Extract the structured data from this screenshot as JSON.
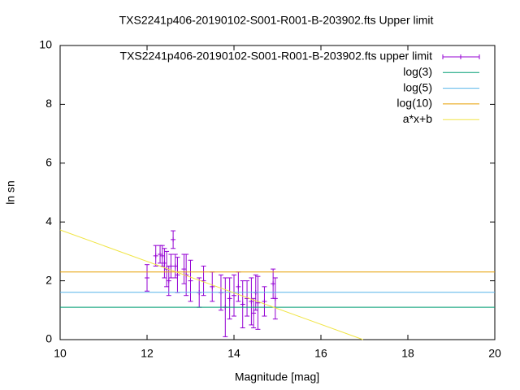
{
  "chart_data": {
    "type": "errorbar",
    "title": "TXS2241p406-20190102-S001-R001-B-203902.fts Upper limit",
    "xlabel": "Magnitude [mag]",
    "ylabel": "ln sn",
    "xlim": [
      10,
      20
    ],
    "xticks": [
      10,
      12,
      14,
      16,
      18,
      20
    ],
    "ylim": [
      0,
      10
    ],
    "yticks": [
      0,
      2,
      4,
      6,
      8,
      10
    ],
    "legend": "top-right",
    "series": [
      {
        "name": "TXS2241p406-20190102-S001-R001-B-203902.fts upper limit",
        "color": "#9400d3",
        "kind": "errorbar",
        "x": [
          12.0,
          12.2,
          12.3,
          12.35,
          12.4,
          12.45,
          12.5,
          12.55,
          12.6,
          12.65,
          12.7,
          12.85,
          12.9,
          13.0,
          13.2,
          13.3,
          13.5,
          13.7,
          13.8,
          13.9,
          14.0,
          14.1,
          14.2,
          14.3,
          14.4,
          14.45,
          14.5,
          14.55,
          14.7,
          14.9,
          14.95
        ],
        "values": [
          2.1,
          2.85,
          2.9,
          2.85,
          2.6,
          2.4,
          2.0,
          2.5,
          3.4,
          2.5,
          2.2,
          2.4,
          2.2,
          2.0,
          1.6,
          2.0,
          1.8,
          1.6,
          1.1,
          1.4,
          1.5,
          1.8,
          1.2,
          1.4,
          1.3,
          0.9,
          1.6,
          1.25,
          1.3,
          1.9,
          1.4
        ],
        "errors": [
          0.45,
          0.35,
          0.3,
          0.35,
          0.5,
          0.6,
          0.5,
          0.4,
          0.3,
          0.4,
          0.6,
          0.5,
          0.7,
          0.7,
          0.5,
          0.5,
          0.5,
          0.6,
          1.0,
          0.7,
          0.7,
          0.5,
          0.8,
          0.6,
          0.8,
          0.5,
          0.6,
          0.9,
          0.5,
          0.5,
          0.7
        ]
      },
      {
        "name": "log(3)",
        "color": "#009e73",
        "kind": "line",
        "x": [
          10,
          20
        ],
        "values": [
          1.1,
          1.1
        ]
      },
      {
        "name": "log(5)",
        "color": "#56b4e9",
        "kind": "line",
        "x": [
          10,
          20
        ],
        "values": [
          1.61,
          1.61
        ]
      },
      {
        "name": "log(10)",
        "color": "#e69f00",
        "kind": "line",
        "x": [
          10,
          20
        ],
        "values": [
          2.3,
          2.3
        ]
      },
      {
        "name": "a*x+b",
        "color": "#f0e442",
        "kind": "line",
        "x": [
          10,
          16.97
        ],
        "values": [
          3.73,
          0
        ]
      }
    ]
  }
}
